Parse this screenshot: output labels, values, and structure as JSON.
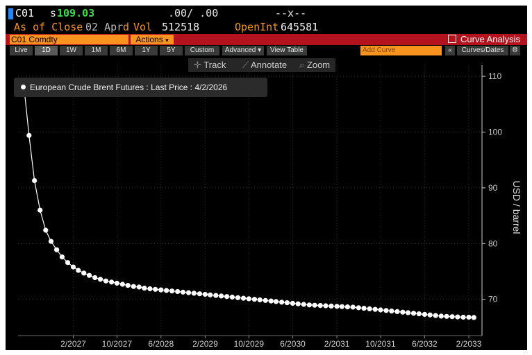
{
  "header": {
    "ticker": "C01",
    "price_prefix": "s",
    "price": "109.03",
    "change": ".00/ .00",
    "extra": "--x--",
    "as_of_label": "As of Close",
    "as_of_date": "02 Apr",
    "flag": "d",
    "vol_label": "Vol",
    "vol_value": "512518",
    "open_int_label": "OpenInt",
    "open_int_value": "645581"
  },
  "bar": {
    "security": "C01 Comdty",
    "actions": "Actions",
    "actions_caret": "▾",
    "curve_analysis": "Curve Analysis"
  },
  "toolbar": {
    "ranges": [
      "Live",
      "1D",
      "1W",
      "1M",
      "6M",
      "1Y",
      "5Y",
      "Custom"
    ],
    "active_range": "1D",
    "advanced": "Advanced ▾",
    "view_table": "View Table",
    "add_curve_placeholder": "Add Curve",
    "collapse": "«",
    "curves_dates": "Curves/Dates",
    "settings_icon": "gear-icon"
  },
  "tools": {
    "track": "Track",
    "annotate": "Annotate",
    "zoom": "Zoom"
  },
  "legend": {
    "text": "European Crude Brent Futures : Last Price : 4/2/2026"
  },
  "colors": {
    "accent": "#f7931e",
    "bar_red": "#b4131d",
    "price_green": "#3ddc4a",
    "series": "#ffffff"
  },
  "chart_data": {
    "type": "line",
    "title": "",
    "ylabel": "USD / barrel",
    "xlabel": "",
    "ylim": [
      63.5,
      112
    ],
    "yticks": [
      70,
      80,
      90,
      100,
      110
    ],
    "xlim": [
      "2026-04-01",
      "2033-04-15"
    ],
    "xticks": [
      {
        "date": "2027-02-01",
        "label": "2/2027"
      },
      {
        "date": "2027-10-01",
        "label": "10/2027"
      },
      {
        "date": "2028-06-01",
        "label": "6/2028"
      },
      {
        "date": "2029-02-01",
        "label": "2/2029"
      },
      {
        "date": "2029-10-01",
        "label": "10/2029"
      },
      {
        "date": "2030-06-01",
        "label": "6/2030"
      },
      {
        "date": "2031-02-01",
        "label": "2/2031"
      },
      {
        "date": "2031-10-01",
        "label": "10/2031"
      },
      {
        "date": "2032-06-01",
        "label": "6/2032"
      },
      {
        "date": "2033-02-01",
        "label": "2/2033"
      }
    ],
    "grid": true,
    "legend": "top-left",
    "series": [
      {
        "name": "European Crude Brent Futures : Last Price : 4/2/2026",
        "x": [
          "2026-05",
          "2026-06",
          "2026-07",
          "2026-08",
          "2026-09",
          "2026-10",
          "2026-11",
          "2026-12",
          "2027-01",
          "2027-02",
          "2027-03",
          "2027-04",
          "2027-05",
          "2027-06",
          "2027-07",
          "2027-08",
          "2027-09",
          "2027-10",
          "2027-11",
          "2027-12",
          "2028-01",
          "2028-02",
          "2028-03",
          "2028-04",
          "2028-05",
          "2028-06",
          "2028-07",
          "2028-08",
          "2028-09",
          "2028-10",
          "2028-11",
          "2028-12",
          "2029-01",
          "2029-02",
          "2029-03",
          "2029-04",
          "2029-05",
          "2029-06",
          "2029-07",
          "2029-08",
          "2029-09",
          "2029-10",
          "2029-11",
          "2029-12",
          "2030-01",
          "2030-02",
          "2030-03",
          "2030-04",
          "2030-05",
          "2030-06",
          "2030-07",
          "2030-08",
          "2030-09",
          "2030-10",
          "2030-11",
          "2030-12",
          "2031-01",
          "2031-02",
          "2031-03",
          "2031-04",
          "2031-05",
          "2031-06",
          "2031-07",
          "2031-08",
          "2031-09",
          "2031-10",
          "2031-11",
          "2031-12",
          "2032-01",
          "2032-02",
          "2032-03",
          "2032-04",
          "2032-05",
          "2032-06",
          "2032-07",
          "2032-08",
          "2032-09",
          "2032-10",
          "2032-11",
          "2032-12",
          "2033-01",
          "2033-02",
          "2033-03"
        ],
        "values": [
          109.03,
          99.4,
          91.3,
          86.0,
          82.4,
          80.4,
          78.9,
          77.6,
          76.6,
          75.8,
          75.2,
          74.7,
          74.3,
          73.9,
          73.6,
          73.3,
          73.1,
          72.9,
          72.7,
          72.5,
          72.3,
          72.2,
          72.0,
          71.9,
          71.8,
          71.7,
          71.6,
          71.5,
          71.4,
          71.3,
          71.2,
          71.1,
          71.0,
          70.9,
          70.8,
          70.7,
          70.6,
          70.5,
          70.4,
          70.3,
          70.2,
          70.1,
          70.0,
          69.9,
          69.8,
          69.7,
          69.6,
          69.5,
          69.4,
          69.3,
          69.2,
          69.1,
          69.0,
          68.95,
          68.9,
          68.85,
          68.8,
          68.75,
          68.7,
          68.65,
          68.6,
          68.5,
          68.4,
          68.3,
          68.2,
          68.1,
          68.0,
          67.9,
          67.8,
          67.7,
          67.6,
          67.5,
          67.4,
          67.3,
          67.2,
          67.1,
          67.0,
          66.95,
          66.9,
          66.85,
          66.8,
          66.8,
          66.75
        ]
      }
    ]
  }
}
